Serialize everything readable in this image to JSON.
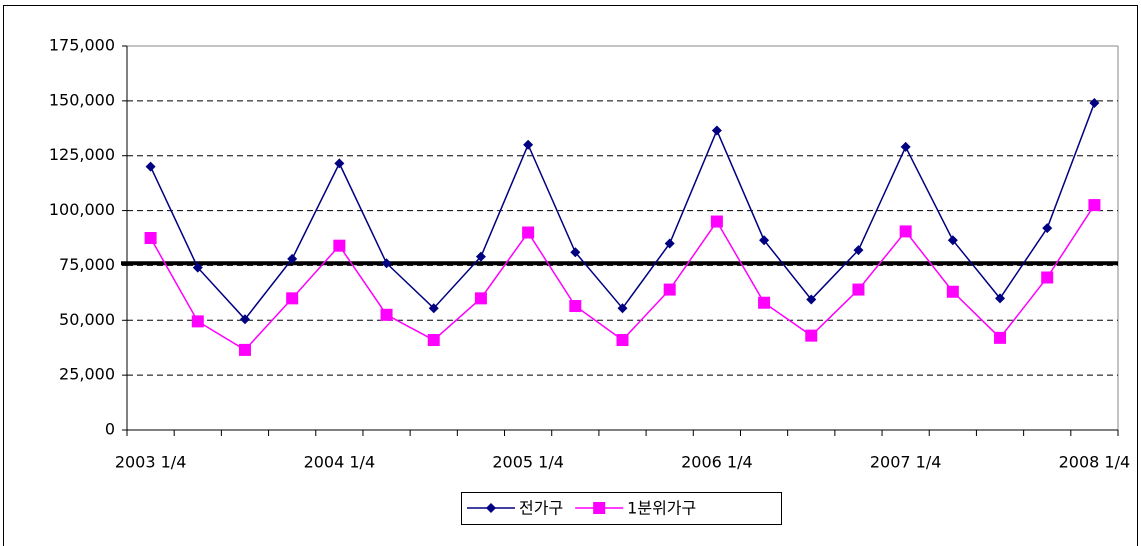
{
  "chart_data": {
    "type": "line",
    "categories": [
      "2003 1/4",
      null,
      null,
      null,
      "2004 1/4",
      null,
      null,
      null,
      "2005 1/4",
      null,
      null,
      null,
      "2006 1/4",
      null,
      null,
      null,
      "2007 1/4",
      null,
      null,
      null,
      "2008 1/4"
    ],
    "series": [
      {
        "name": "전가구",
        "color": "#000080",
        "marker": "diamond",
        "values": [
          120000,
          74000,
          50500,
          78000,
          121500,
          76000,
          55500,
          79000,
          130000,
          81000,
          55500,
          85000,
          136500,
          86500,
          59500,
          82000,
          129000,
          86500,
          60000,
          92000,
          149000
        ]
      },
      {
        "name": "1분위가구",
        "color": "#ff00ff",
        "marker": "square",
        "values": [
          87500,
          49500,
          36500,
          60000,
          84000,
          52500,
          41000,
          60000,
          90000,
          56500,
          41000,
          64000,
          95000,
          58000,
          43000,
          64000,
          90500,
          63000,
          42000,
          69500,
          102500
        ]
      }
    ],
    "reference_line": {
      "value": 76000,
      "color": "#000000"
    },
    "ylim": [
      0,
      175000
    ],
    "yticks": [
      0,
      {
        "value": 25000,
        "label": "25,000"
      },
      {
        "value": 50000,
        "label": "50,000"
      },
      {
        "value": 75000,
        "label": "75,000"
      },
      {
        "value": 100000,
        "label": "100,000"
      },
      {
        "value": 125000,
        "label": "125,000"
      },
      {
        "value": 150000,
        "label": "150,000"
      },
      {
        "value": 175000,
        "label": "175,000"
      }
    ],
    "grid": true,
    "legend": "bottom"
  }
}
